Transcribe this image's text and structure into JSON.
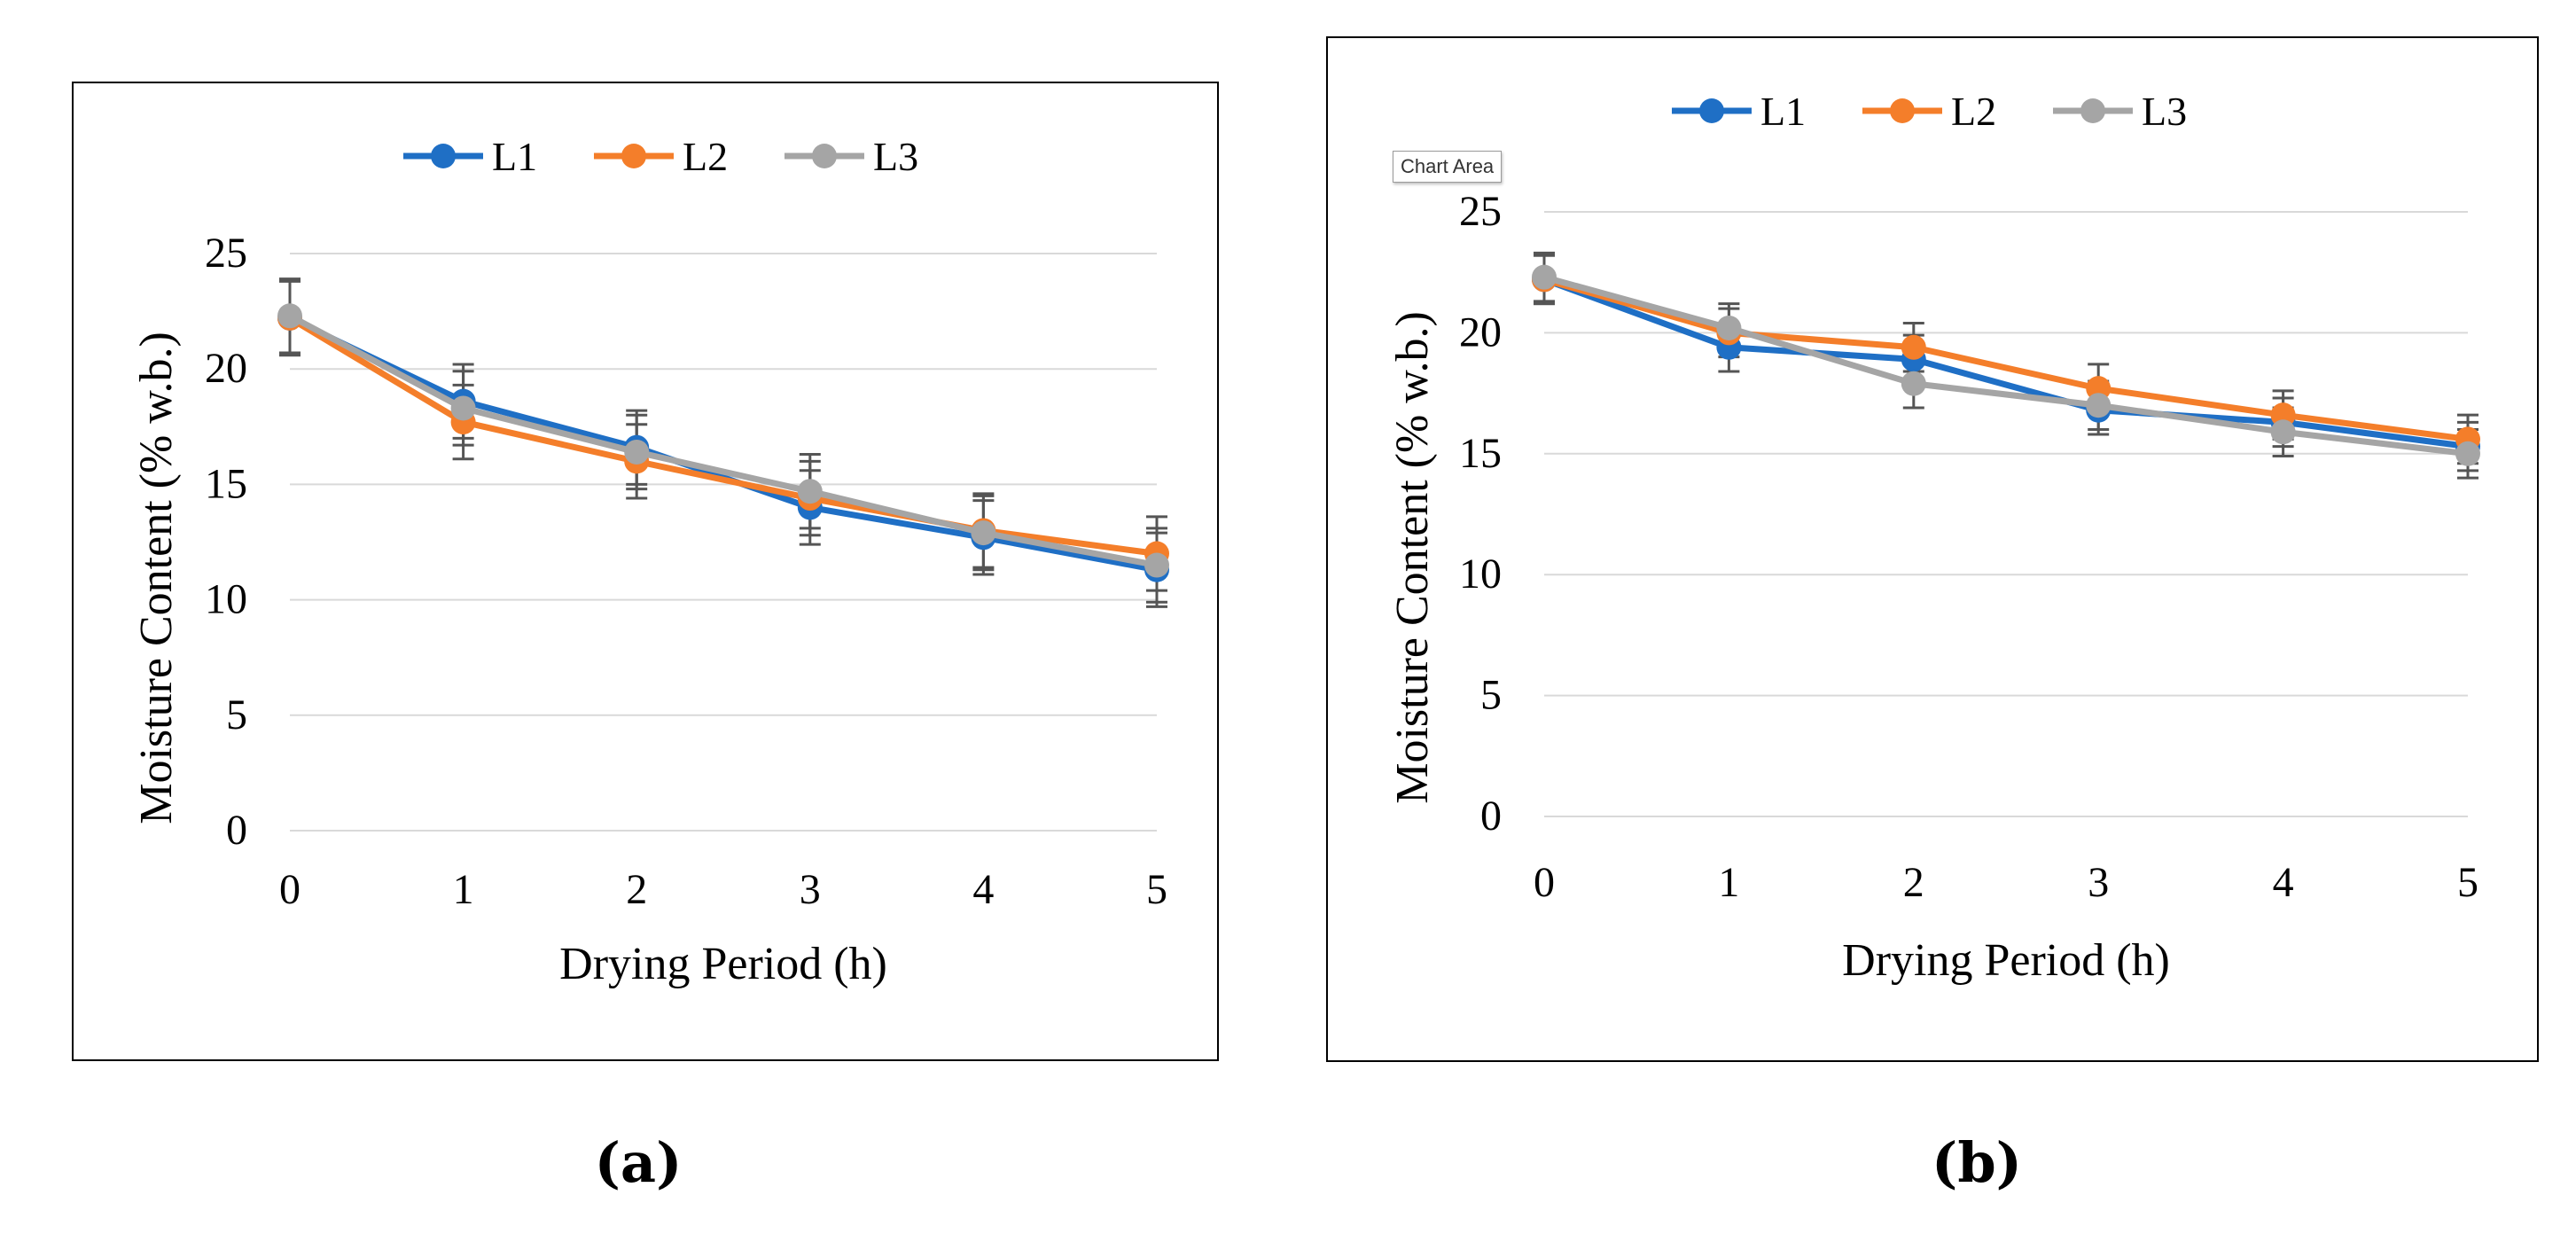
{
  "figure": {
    "caption_a": "(a)",
    "caption_b": "(b)",
    "tooltip": "Chart Area"
  },
  "colors": {
    "L1": "#1F6FC5",
    "L2": "#F47E2A",
    "L3": "#A5A5A5",
    "grid": "#D9D9D9",
    "errorbar": "#555555"
  },
  "chart_data": [
    {
      "type": "line",
      "panel": "a",
      "title": "",
      "xlabel": "Drying Period (h)",
      "ylabel": "Moisture Content (% w.b.)",
      "x": [
        0,
        1,
        2,
        3,
        4,
        5
      ],
      "xlim": [
        0,
        5
      ],
      "ylim": [
        0,
        25
      ],
      "yticks": [
        0,
        5,
        10,
        15,
        20,
        25
      ],
      "grid": true,
      "legend": "top-center",
      "series": [
        {
          "name": "L1",
          "values": [
            22.2,
            18.6,
            16.6,
            14.0,
            12.7,
            11.3
          ],
          "error": [
            1.6,
            1.6,
            1.6,
            1.6,
            1.6,
            1.6
          ]
        },
        {
          "name": "L2",
          "values": [
            22.2,
            17.7,
            16.0,
            14.4,
            13.0,
            12.0
          ],
          "error": [
            1.6,
            1.6,
            1.6,
            1.6,
            1.6,
            1.6
          ]
        },
        {
          "name": "L3",
          "values": [
            22.3,
            18.3,
            16.4,
            14.7,
            12.9,
            11.5
          ],
          "error": [
            1.6,
            1.6,
            1.6,
            1.6,
            1.6,
            1.6
          ]
        }
      ]
    },
    {
      "type": "line",
      "panel": "b",
      "title": "",
      "xlabel": "Drying Period (h)",
      "ylabel": "Moisture Content (% w.b.)",
      "x": [
        0,
        1,
        2,
        3,
        4,
        5
      ],
      "xlim": [
        0,
        5
      ],
      "ylim": [
        0,
        25
      ],
      "yticks": [
        0,
        5,
        10,
        15,
        20,
        25
      ],
      "grid": true,
      "legend": "top-center",
      "series": [
        {
          "name": "L1",
          "values": [
            22.2,
            19.4,
            18.9,
            16.8,
            16.3,
            15.3
          ],
          "error": [
            1.0,
            1.0,
            1.0,
            1.0,
            1.0,
            1.0
          ]
        },
        {
          "name": "L2",
          "values": [
            22.2,
            20.0,
            19.4,
            17.7,
            16.6,
            15.6
          ],
          "error": [
            1.0,
            1.0,
            1.0,
            1.0,
            1.0,
            1.0
          ]
        },
        {
          "name": "L3",
          "values": [
            22.3,
            20.2,
            17.9,
            17.0,
            15.9,
            15.0
          ],
          "error": [
            1.0,
            1.0,
            1.0,
            1.0,
            1.0,
            1.0
          ]
        }
      ]
    }
  ]
}
